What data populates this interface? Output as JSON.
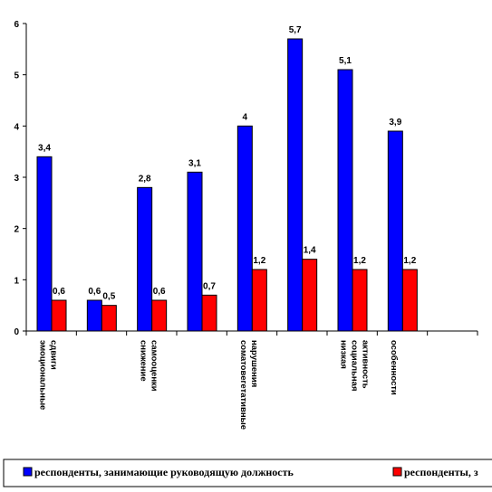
{
  "chart_data": {
    "type": "bar",
    "title": "",
    "xlabel": "",
    "ylabel": "",
    "ylim": [
      0,
      6
    ],
    "yticks": [
      0,
      1,
      2,
      3,
      4,
      5,
      6
    ],
    "grid": false,
    "legend": "bottom",
    "categories": [
      "эмоциональные сдвиги",
      "",
      "снижение самооценки",
      "",
      "соматовегетативные нарушения",
      "",
      "низкая социальная активность",
      "особенности"
    ],
    "series": [
      {
        "name": "респонденты, занимающие руководящую должность",
        "color": "#0000ff",
        "values": [
          3.4,
          0.6,
          2.8,
          3.1,
          4,
          5.7,
          5.1,
          3.9
        ],
        "labels": [
          "3,4",
          "0,6",
          "2,8",
          "3,1",
          "4",
          "5,7",
          "5,1",
          "3,9"
        ]
      },
      {
        "name": "респонденты, з",
        "color": "#ff0000",
        "values": [
          0.6,
          0.5,
          0.6,
          0.7,
          1.2,
          1.4,
          1.2,
          1.2
        ],
        "labels": [
          "0,6",
          "0,5",
          "0,6",
          "0,7",
          "1,2",
          "1,4",
          "1,2",
          "1,2"
        ]
      }
    ]
  }
}
